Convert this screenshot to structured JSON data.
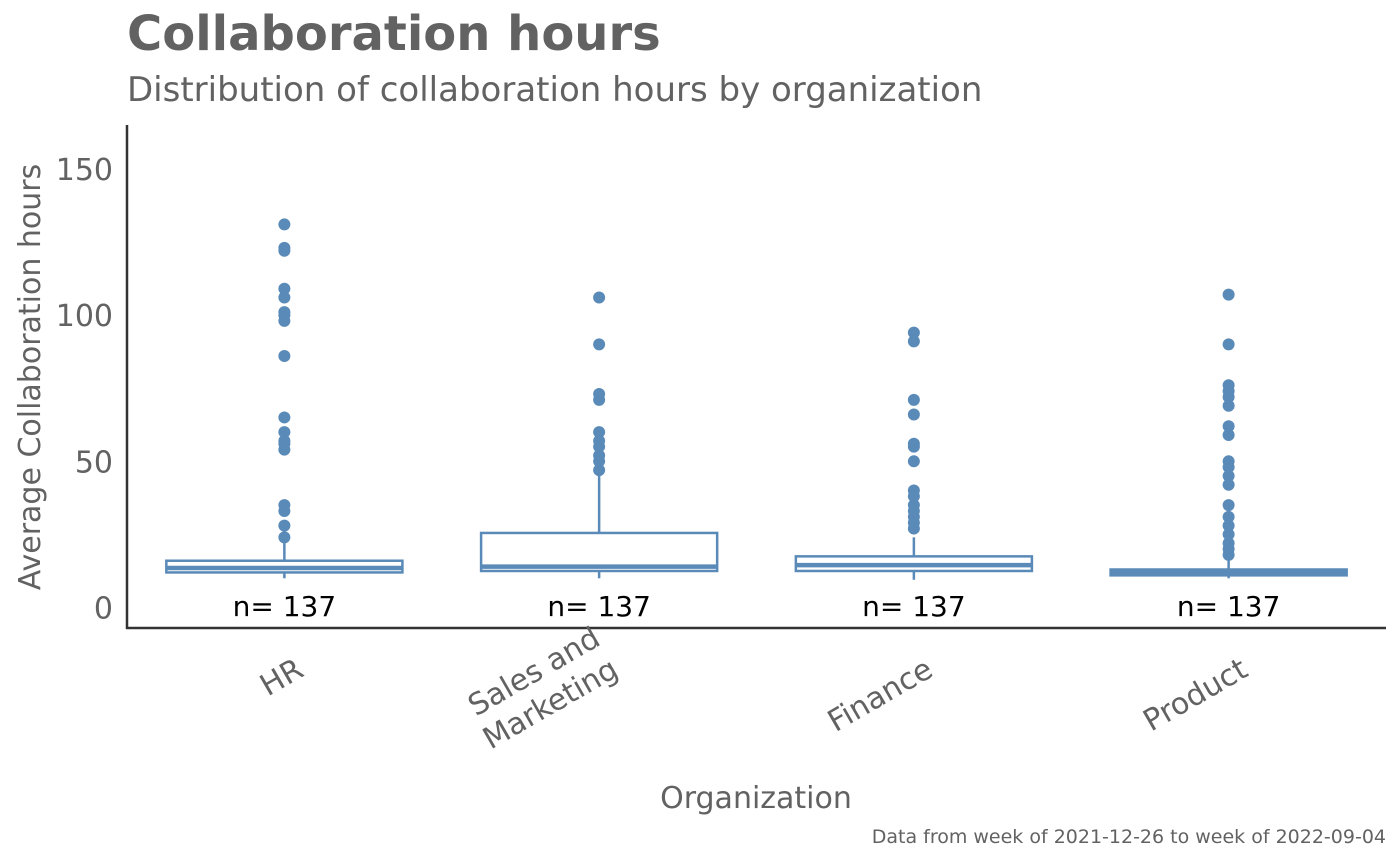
{
  "title": "Collaboration hours",
  "subtitle": "Distribution of collaboration hours by organization",
  "caption": "Data from week of 2021-12-26 to week of 2022-09-04",
  "colors": {
    "box": "#5a8ab8",
    "point": "#5a8ab8",
    "text": "#626262",
    "label": "#000000",
    "axis": "#333333"
  },
  "chart_data": {
    "type": "box",
    "title": "Collaboration hours",
    "subtitle": "Distribution of collaboration hours by organization",
    "xlabel": "Organization",
    "ylabel": "Average Collaboration hours",
    "ylim": [
      -7,
      165
    ],
    "yticks": [
      0,
      50,
      100,
      150
    ],
    "grid": false,
    "categories": [
      "HR",
      "Sales and\nMarketing",
      "Finance",
      "Product"
    ],
    "counts": [
      "n= 137",
      "n= 137",
      "n= 137",
      "n= 137"
    ],
    "boxes": [
      {
        "category": "HR",
        "min": 10,
        "q1": 12,
        "median": 13.5,
        "q3": 16,
        "max": 23,
        "outliers": [
          24,
          28,
          33,
          35,
          54,
          56,
          57,
          60,
          65,
          86,
          98,
          100,
          101,
          106,
          109,
          122,
          123,
          131
        ]
      },
      {
        "category": "Sales and Marketing",
        "min": 10,
        "q1": 12.5,
        "median": 14,
        "q3": 25.5,
        "max": 46,
        "outliers": [
          47,
          50,
          52,
          55,
          57,
          60,
          71,
          73,
          90,
          106
        ]
      },
      {
        "category": "Finance",
        "min": 9.5,
        "q1": 12.5,
        "median": 14.5,
        "q3": 17.5,
        "max": 24,
        "outliers": [
          27,
          29,
          31,
          33,
          35,
          38,
          40,
          50,
          55,
          56,
          66,
          71,
          91,
          94
        ]
      },
      {
        "category": "Product",
        "min": 10,
        "q1": 11,
        "median": 12,
        "q3": 13,
        "max": 17,
        "outliers": [
          18,
          20,
          22,
          25,
          28,
          31,
          35,
          42,
          45,
          48,
          50,
          59,
          62,
          69,
          72,
          74,
          76,
          90,
          107
        ]
      }
    ]
  }
}
